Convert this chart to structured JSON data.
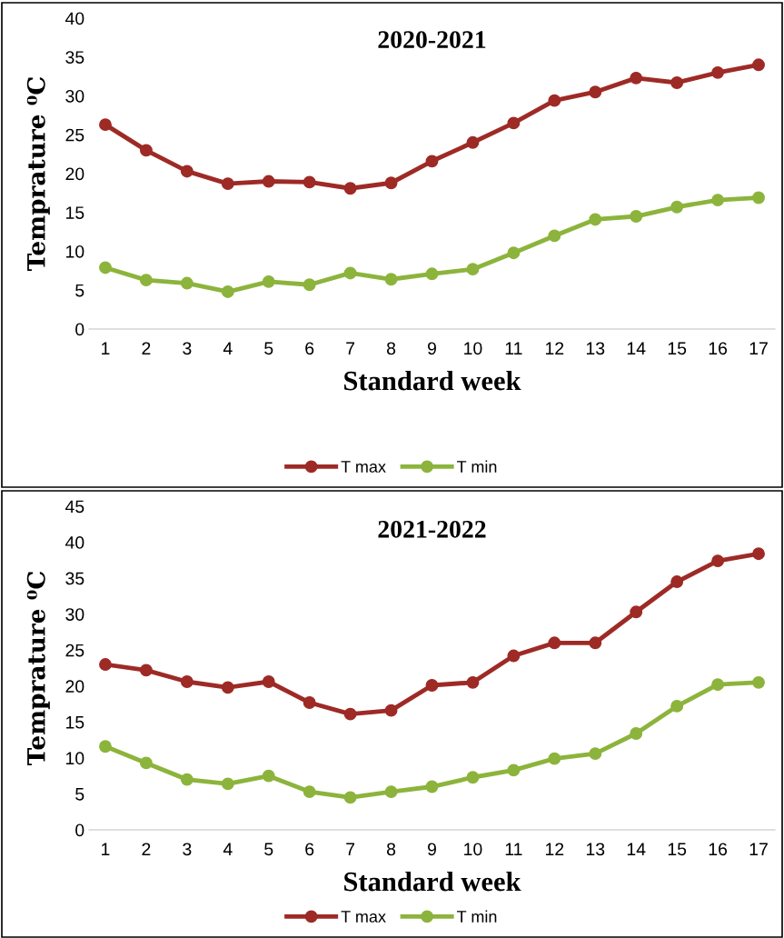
{
  "chart_data": [
    {
      "type": "line",
      "title": "2020-2021",
      "xlabel": "Standard week",
      "ylabel": "Temprature ⁰C",
      "categories": [
        "1",
        "2",
        "3",
        "4",
        "5",
        "6",
        "7",
        "8",
        "9",
        "10",
        "11",
        "12",
        "13",
        "14",
        "15",
        "16",
        "17"
      ],
      "series": [
        {
          "name": "T max",
          "color": "#9e2a26",
          "values": [
            26.3,
            23,
            20.3,
            18.7,
            19,
            18.9,
            18.1,
            18.8,
            21.6,
            24,
            26.5,
            29.4,
            30.5,
            32.3,
            31.7,
            33,
            34
          ]
        },
        {
          "name": "T min",
          "color": "#8cb43c",
          "values": [
            7.9,
            6.3,
            5.9,
            4.8,
            6.1,
            5.7,
            7.2,
            6.4,
            7.1,
            7.7,
            9.8,
            12,
            14.1,
            14.5,
            15.7,
            16.6,
            16.9
          ]
        }
      ],
      "ylim": [
        0,
        40
      ],
      "yticks": [
        0,
        5,
        10,
        15,
        20,
        25,
        30,
        35,
        40
      ],
      "grid": false,
      "legend": "bottom",
      "marker": "circle",
      "line_style": "solid"
    },
    {
      "type": "line",
      "title": "2021-2022",
      "xlabel": "Standard week",
      "ylabel": "Temprature ⁰C",
      "categories": [
        "1",
        "2",
        "3",
        "4",
        "5",
        "6",
        "7",
        "8",
        "9",
        "10",
        "11",
        "12",
        "13",
        "14",
        "15",
        "16",
        "17"
      ],
      "series": [
        {
          "name": "T max",
          "color": "#9e2a26",
          "values": [
            23,
            22.2,
            20.6,
            19.8,
            20.6,
            17.7,
            16.1,
            16.6,
            20.1,
            20.5,
            24.2,
            26,
            26,
            30.3,
            34.5,
            37.4,
            38.4
          ]
        },
        {
          "name": "T min",
          "color": "#8cb43c",
          "values": [
            11.6,
            9.3,
            7,
            6.4,
            7.5,
            5.3,
            4.5,
            5.3,
            6,
            7.3,
            8.3,
            9.9,
            10.6,
            13.4,
            17.2,
            20.2,
            20.5
          ]
        }
      ],
      "ylim": [
        0,
        45
      ],
      "yticks": [
        0,
        5,
        10,
        15,
        20,
        25,
        30,
        35,
        40,
        45
      ],
      "grid": false,
      "legend": "bottom",
      "marker": "circle",
      "line_style": "solid"
    }
  ]
}
